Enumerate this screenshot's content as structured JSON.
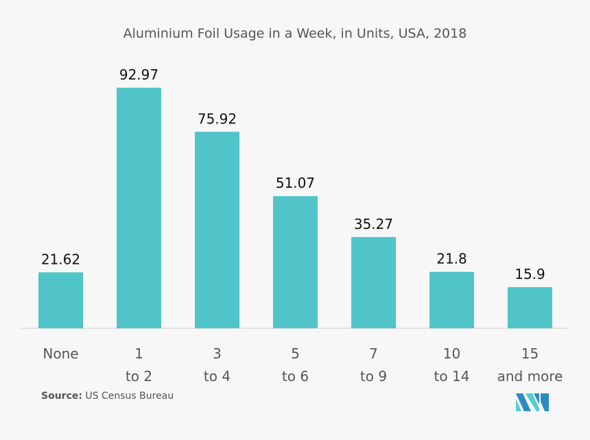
{
  "chart_data": {
    "type": "bar",
    "title": "Aluminium Foil Usage in a Week, in Units, USA, 2018",
    "categories": [
      "None",
      "1 to 2",
      "3 to 4",
      "5 to 6",
      "7 to 9",
      "10 to 14",
      "15 and more"
    ],
    "values": [
      21.62,
      92.97,
      75.92,
      51.07,
      35.27,
      21.8,
      15.9
    ],
    "value_labels": [
      "21.62",
      "92.97",
      "75.92",
      "51.07",
      "35.27",
      "21.8",
      "15.9"
    ],
    "xlabel": "",
    "ylabel": "",
    "ylim": [
      0,
      100
    ],
    "grid": false,
    "bar_color": "#50c4c8"
  },
  "source": {
    "label": "Source:",
    "text": "US Census Bureau"
  },
  "logo": {
    "name": "MI",
    "colors": [
      "#2e8bc0",
      "#4fd0d6"
    ]
  }
}
